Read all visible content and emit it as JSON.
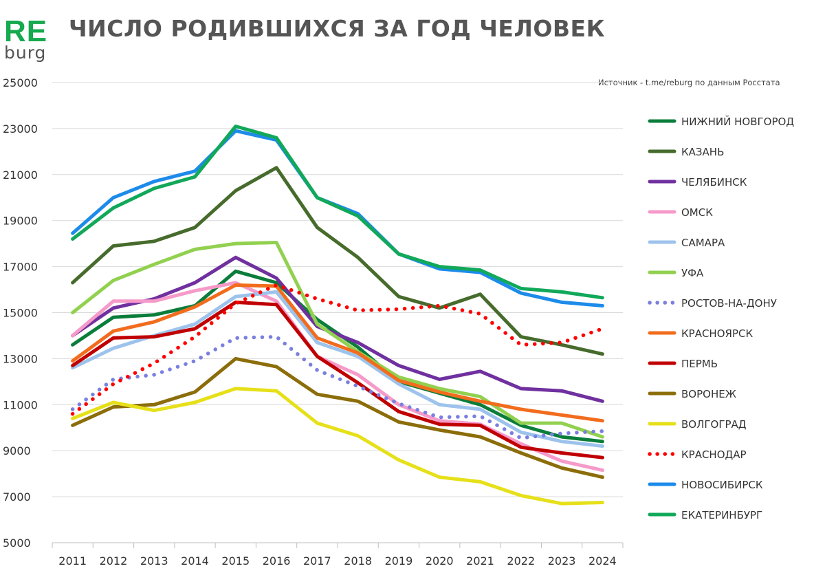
{
  "logo": {
    "top": "RE",
    "bottom": "burg"
  },
  "header": {
    "title": "ЧИСЛО РОДИВШИХСЯ ЗА ГОД ЧЕЛОВЕК",
    "source": "Источник - t.me/reburg по данным Росстата"
  },
  "colors": {
    "brand_green": "#16a94e",
    "gridline": "#d9d9d9",
    "text": "#555555"
  },
  "chart_data": {
    "type": "line",
    "title": "ЧИСЛО РОДИВШИХСЯ ЗА ГОД ЧЕЛОВЕК",
    "xlabel": "",
    "ylabel": "",
    "categories": [
      "2011",
      "2012",
      "2013",
      "2014",
      "2015",
      "2016",
      "2017",
      "2018",
      "2019",
      "2020",
      "2021",
      "2022",
      "2023",
      "2024"
    ],
    "y_ticks": [
      "5000",
      "7000",
      "9000",
      "11000",
      "13000",
      "15000",
      "17000",
      "19000",
      "21000",
      "23000",
      "25000"
    ],
    "ylim": [
      5000,
      25000
    ],
    "grid": "horizontal",
    "legend_position": "right",
    "series": [
      {
        "name": "НИЖНИЙ НОВГОРОД",
        "color": "#0b7d3b",
        "dashed": false,
        "values": [
          13600,
          14800,
          14900,
          15300,
          16800,
          16300,
          14700,
          13500,
          12000,
          11500,
          11000,
          10100,
          9600,
          9400
        ]
      },
      {
        "name": "КАЗАНЬ",
        "color": "#466b2c",
        "dashed": false,
        "values": [
          16300,
          17900,
          18100,
          18700,
          20300,
          21300,
          18700,
          17400,
          15700,
          15200,
          15800,
          13950,
          13600,
          13200
        ]
      },
      {
        "name": "ЧЕЛЯБИНСК",
        "color": "#70309f",
        "dashed": false,
        "values": [
          14000,
          15200,
          15600,
          16300,
          17400,
          16500,
          14400,
          13700,
          12700,
          12100,
          12450,
          11700,
          11600,
          11150
        ]
      },
      {
        "name": "ОМСК",
        "color": "#f59ac9",
        "dashed": false,
        "values": [
          14000,
          15500,
          15500,
          15950,
          16300,
          15500,
          13100,
          12300,
          11000,
          10300,
          10150,
          9300,
          8550,
          8150
        ]
      },
      {
        "name": "САМАРА",
        "color": "#9dc3ec",
        "dashed": false,
        "values": [
          12600,
          13450,
          14000,
          14500,
          15700,
          15900,
          13700,
          13100,
          11900,
          11000,
          10800,
          9800,
          9400,
          9200
        ]
      },
      {
        "name": "УФА",
        "color": "#92d050",
        "dashed": false,
        "values": [
          15000,
          16400,
          17100,
          17750,
          18000,
          18050,
          14500,
          13300,
          12200,
          11700,
          11350,
          10200,
          10200,
          9600
        ]
      },
      {
        "name": "РОСТОВ-НА-ДОНУ",
        "color": "#7a7fe0",
        "dashed": true,
        "values": [
          10800,
          12100,
          12300,
          12900,
          13900,
          13950,
          12500,
          11800,
          11050,
          10450,
          10500,
          9550,
          9750,
          9850
        ]
      },
      {
        "name": "КРАСНОЯРСК",
        "color": "#f26c1d",
        "dashed": false,
        "values": [
          12900,
          14200,
          14600,
          15250,
          16200,
          16150,
          13900,
          13250,
          12050,
          11550,
          11150,
          10800,
          10550,
          10300
        ]
      },
      {
        "name": "ПЕРМЬ",
        "color": "#c00000",
        "dashed": false,
        "values": [
          12700,
          13900,
          13950,
          14300,
          15450,
          15350,
          13100,
          11950,
          10700,
          10150,
          10100,
          9150,
          8900,
          8700
        ]
      },
      {
        "name": "ВОРОНЕЖ",
        "color": "#8b6d0a",
        "dashed": false,
        "values": [
          10100,
          10900,
          11000,
          11550,
          13000,
          12650,
          11450,
          11150,
          10250,
          9900,
          9600,
          8900,
          8250,
          7850
        ]
      },
      {
        "name": "ВОЛГОГРАД",
        "color": "#e6e01a",
        "dashed": false,
        "values": [
          10400,
          11100,
          10750,
          11100,
          11700,
          11600,
          10200,
          9650,
          8600,
          7850,
          7650,
          7050,
          6700,
          6750
        ]
      },
      {
        "name": "КРАСНОДАР",
        "color": "#ff0000",
        "dashed": true,
        "values": [
          10600,
          11900,
          12800,
          13950,
          15400,
          16200,
          15600,
          15100,
          15150,
          15300,
          14950,
          13600,
          13700,
          14300
        ]
      },
      {
        "name": "НОВОСИБИРСК",
        "color": "#1c8bea",
        "dashed": false,
        "values": [
          18450,
          20000,
          20700,
          21150,
          22900,
          22500,
          20000,
          19300,
          17550,
          16900,
          16750,
          15850,
          15450,
          15300
        ]
      },
      {
        "name": "ЕКАТЕРИНБУРГ",
        "color": "#12a85a",
        "dashed": false,
        "values": [
          18200,
          19550,
          20400,
          20900,
          23100,
          22600,
          20000,
          19200,
          17550,
          17000,
          16850,
          16050,
          15900,
          15650
        ]
      }
    ]
  }
}
